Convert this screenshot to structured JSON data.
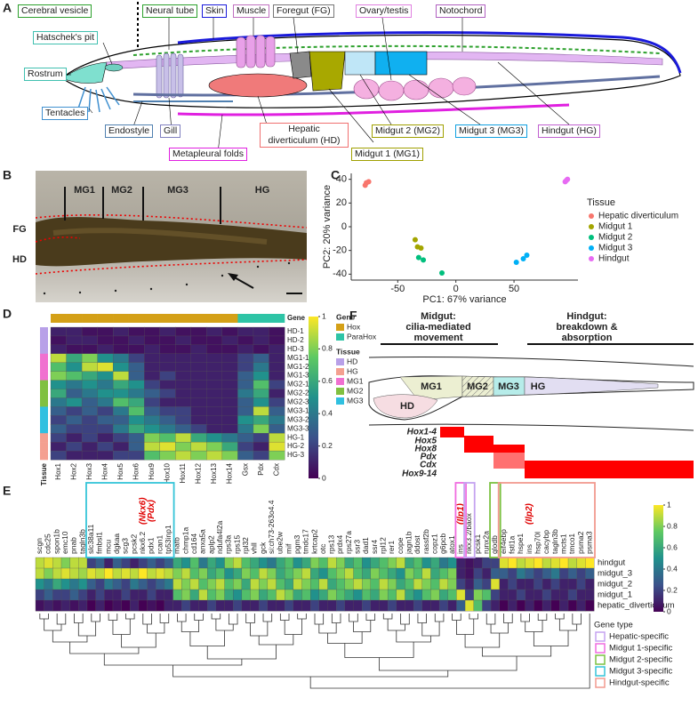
{
  "panel_labels": [
    "A",
    "B",
    "C",
    "D",
    "E",
    "F"
  ],
  "figure_a": {
    "labels": [
      "Cerebral vesicle",
      "Neural tube",
      "Skin",
      "Muscle",
      "Foregut (FG)",
      "Ovary/testis",
      "Notochord",
      "Hatschek's pit",
      "Rostrum",
      "Tentacles",
      "Endostyle",
      "Gill",
      "Hepatic diverticulum (HD)",
      "Metapleural folds",
      "Midgut 1 (MG1)",
      "Midgut 2 (MG2)",
      "Midgut 3 (MG3)",
      "Hindgut (HG)"
    ]
  },
  "figure_b": {
    "labels": [
      "MG1",
      "MG2",
      "MG3",
      "HG",
      "FG",
      "HD"
    ]
  },
  "chart_data": [
    {
      "type": "scatter",
      "xlabel": "PC1: 67% variance",
      "ylabel": "PC2: 20% variance",
      "legend_title": "Tissue",
      "xlim": [
        -90,
        105
      ],
      "ylim": [
        -45,
        45
      ],
      "xticks": [
        -50,
        0,
        50
      ],
      "yticks": [
        -40,
        -20,
        0,
        20,
        40
      ],
      "series": [
        {
          "name": "Hepatic diverticulum",
          "color": "#f8766d",
          "x": [
            -78,
            -75,
            -77
          ],
          "y": [
            35,
            38,
            37
          ]
        },
        {
          "name": "Midgut 1",
          "color": "#a3a500",
          "x": [
            -35,
            -33,
            -30
          ],
          "y": [
            -11,
            -17,
            -18
          ]
        },
        {
          "name": "Midgut 2",
          "color": "#00bf7d",
          "x": [
            -32,
            -28,
            -12
          ],
          "y": [
            -26,
            -28,
            -39
          ]
        },
        {
          "name": "Midgut 3",
          "color": "#00b0f6",
          "x": [
            52,
            58,
            61
          ],
          "y": [
            -30,
            -27,
            -24
          ]
        },
        {
          "name": "Hindgut",
          "color": "#e76bf3",
          "x": [
            94,
            96,
            95
          ],
          "y": [
            38,
            40,
            39
          ]
        }
      ]
    },
    {
      "type": "heatmap",
      "colormap": "viridis",
      "clim": [
        0,
        1
      ],
      "cticks": [
        0,
        0.2,
        0.4,
        0.6,
        0.8,
        1
      ],
      "x": [
        "Hox1",
        "Hox2",
        "Hox3",
        "Hox4",
        "Hox5",
        "Hox6",
        "Hox9",
        "Hox10",
        "Hox11",
        "Hox12",
        "Hox13",
        "Hox14",
        "Gsx",
        "Pdx",
        "Cdx"
      ],
      "y": [
        "HD-1",
        "HD-2",
        "HD-3",
        "MG1-1",
        "MG1-2",
        "MG1-3",
        "MG2-1",
        "MG2-2",
        "MG2-3",
        "MG3-1",
        "MG3-2",
        "MG3-3",
        "HG-1",
        "HG-2",
        "HG-3"
      ],
      "col_title": "Gene",
      "row_title": "Tissue",
      "col_group": [
        "Hox",
        "Hox",
        "Hox",
        "Hox",
        "Hox",
        "Hox",
        "Hox",
        "Hox",
        "Hox",
        "Hox",
        "Hox",
        "Hox",
        "ParaHox",
        "ParaHox",
        "ParaHox"
      ],
      "row_group": [
        "HD",
        "HD",
        "HD",
        "MG1",
        "MG1",
        "MG1",
        "MG2",
        "MG2",
        "MG2",
        "MG3",
        "MG3",
        "MG3",
        "HG",
        "HG",
        "HG"
      ],
      "gene_legend": [
        {
          "name": "Hox",
          "color": "#d4a017"
        },
        {
          "name": "ParaHox",
          "color": "#2ec4a6"
        }
      ],
      "tissue_legend": [
        {
          "name": "HD",
          "color": "#b8a0e8"
        },
        {
          "name": "HG",
          "color": "#f4a090"
        },
        {
          "name": "MG1",
          "color": "#f070d0"
        },
        {
          "name": "MG2",
          "color": "#80c040"
        },
        {
          "name": "MG3",
          "color": "#30c0e0"
        }
      ],
      "values": [
        [
          0.1,
          0.1,
          0.05,
          0.05,
          0.1,
          0.05,
          0.05,
          0.1,
          0.05,
          0.05,
          0.1,
          0.05,
          0.1,
          0.1,
          0.05
        ],
        [
          0.05,
          0.1,
          0.1,
          0.05,
          0.05,
          0.1,
          0.05,
          0.05,
          0.1,
          0.05,
          0.05,
          0.1,
          0.05,
          0.1,
          0.05
        ],
        [
          0.1,
          0.05,
          0.05,
          0.1,
          0.05,
          0.05,
          0.1,
          0.05,
          0.05,
          0.1,
          0.05,
          0.05,
          0.1,
          0.05,
          0.1
        ],
        [
          0.9,
          0.6,
          0.8,
          0.5,
          0.4,
          0.2,
          0.1,
          0.1,
          0.1,
          0.1,
          0.1,
          0.1,
          0.2,
          0.3,
          0.1
        ],
        [
          0.7,
          0.5,
          0.9,
          0.95,
          0.5,
          0.3,
          0.1,
          0.1,
          0.1,
          0.1,
          0.1,
          0.1,
          0.2,
          0.4,
          0.1
        ],
        [
          0.8,
          0.7,
          0.6,
          0.5,
          0.9,
          0.3,
          0.1,
          0.2,
          0.1,
          0.1,
          0.1,
          0.1,
          0.3,
          0.5,
          0.1
        ],
        [
          0.5,
          0.4,
          0.5,
          0.4,
          0.6,
          0.5,
          0.2,
          0.1,
          0.1,
          0.1,
          0.1,
          0.1,
          0.3,
          0.7,
          0.2
        ],
        [
          0.6,
          0.3,
          0.4,
          0.5,
          0.5,
          0.4,
          0.3,
          0.2,
          0.1,
          0.1,
          0.1,
          0.1,
          0.4,
          0.6,
          0.1
        ],
        [
          0.4,
          0.5,
          0.3,
          0.4,
          0.7,
          0.6,
          0.2,
          0.1,
          0.1,
          0.1,
          0.1,
          0.1,
          0.3,
          0.5,
          0.2
        ],
        [
          0.3,
          0.2,
          0.3,
          0.2,
          0.4,
          0.7,
          0.3,
          0.2,
          0.2,
          0.1,
          0.1,
          0.1,
          0.3,
          0.9,
          0.3
        ],
        [
          0.2,
          0.3,
          0.2,
          0.3,
          0.3,
          0.5,
          0.4,
          0.3,
          0.2,
          0.1,
          0.1,
          0.1,
          0.5,
          0.6,
          0.4
        ],
        [
          0.3,
          0.2,
          0.2,
          0.2,
          0.4,
          0.6,
          0.5,
          0.4,
          0.3,
          0.2,
          0.1,
          0.1,
          0.4,
          0.8,
          0.3
        ],
        [
          0.2,
          0.1,
          0.2,
          0.1,
          0.2,
          0.3,
          0.8,
          0.7,
          0.9,
          0.6,
          0.5,
          0.4,
          0.3,
          0.2,
          0.9
        ],
        [
          0.1,
          0.2,
          0.1,
          0.2,
          0.1,
          0.3,
          0.9,
          0.95,
          0.8,
          0.9,
          0.8,
          0.6,
          0.2,
          0.1,
          0.95
        ],
        [
          0.2,
          0.1,
          0.1,
          0.1,
          0.2,
          0.2,
          0.7,
          0.8,
          0.9,
          0.8,
          0.9,
          0.8,
          0.3,
          0.2,
          0.8
        ]
      ]
    },
    {
      "type": "heatmap",
      "colormap": "viridis",
      "clim": [
        0,
        1
      ],
      "cticks": [
        0,
        0.2,
        0.4,
        0.6,
        0.8,
        1
      ],
      "x": [
        "scgn",
        "cdc25",
        "spon1b",
        "emc10",
        "pnab",
        "tagln3b",
        "slc38a11",
        "fmbsl1",
        "mcu",
        "dgkaa",
        "scg3",
        "pcsk2",
        "nkx6.2",
        "pdx1",
        "rcan1",
        "tp53inp1",
        "mafb",
        "chmp1a",
        "cd164",
        "anxa5a",
        "aplp2",
        "ndufa4l2a",
        "rps3a",
        "rps15",
        "rpl32",
        "vhll",
        "gck",
        "si:ch73-263o4.4",
        "ube2w",
        "mif",
        "pgm3",
        "tmdc17",
        "krtcap2",
        "otc",
        "rps13",
        "prdx4",
        "rps27a",
        "ssr3",
        "dad1",
        "ssr4",
        "rpl12",
        "rer1",
        "cope",
        "jagn1b",
        "ddost",
        "rassf2b",
        "copz1",
        "g6pcb",
        "atox1",
        "ins",
        "nkx3.2/baox",
        "pcsk1",
        "runx2a",
        "glodb",
        "eif4ebp",
        "fstl1a",
        "hspe1",
        "ins",
        "hsp70l",
        "cacybp",
        "tagln3b",
        "mcts1",
        "tmco1",
        "psma2",
        "psma3"
      ],
      "x_notes": [
        null,
        null,
        null,
        null,
        null,
        null,
        null,
        null,
        null,
        null,
        null,
        null,
        "(Nkx6)",
        "(Pdx)",
        null,
        null,
        null,
        null,
        null,
        null,
        null,
        null,
        null,
        null,
        null,
        null,
        null,
        null,
        null,
        null,
        null,
        null,
        null,
        null,
        null,
        null,
        null,
        null,
        null,
        null,
        null,
        null,
        null,
        null,
        null,
        null,
        null,
        null,
        null,
        "(Ilp1)",
        null,
        null,
        null,
        null,
        null,
        null,
        null,
        "(Ilp2)",
        null,
        null,
        null,
        null,
        null,
        null,
        null
      ],
      "y": [
        "hindgut",
        "midgut_3",
        "midgut_2",
        "midgut_1",
        "hepatic_diverticulum"
      ],
      "legend_title": "Gene type",
      "legend": [
        {
          "name": "Hepatic-specific",
          "color": "#c5a3f0"
        },
        {
          "name": "Midgut 1-specific",
          "color": "#f06ce0"
        },
        {
          "name": "Midgut 2-specific",
          "color": "#7cc242"
        },
        {
          "name": "Midgut 3-specific",
          "color": "#35c4d8"
        },
        {
          "name": "Hindgut-specific",
          "color": "#f29a8f"
        }
      ],
      "gene_type": [
        null,
        null,
        null,
        null,
        null,
        null,
        "Midgut 3-specific",
        "Midgut 3-specific",
        "Midgut 3-specific",
        "Midgut 3-specific",
        "Midgut 3-specific",
        "Midgut 3-specific",
        "Midgut 3-specific",
        "Midgut 3-specific",
        "Midgut 3-specific",
        "Midgut 3-specific",
        null,
        null,
        null,
        null,
        null,
        null,
        null,
        null,
        null,
        null,
        null,
        null,
        null,
        null,
        null,
        null,
        null,
        null,
        null,
        null,
        null,
        null,
        null,
        null,
        null,
        null,
        null,
        null,
        null,
        null,
        null,
        null,
        null,
        "Midgut 1-specific",
        "Hepatic-specific",
        null,
        null,
        "Midgut 2-specific",
        "Hindgut-specific",
        "Hindgut-specific",
        "Hindgut-specific",
        "Hindgut-specific",
        "Hindgut-specific",
        "Hindgut-specific",
        "Hindgut-specific",
        "Hindgut-specific",
        "Hindgut-specific",
        "Hindgut-specific",
        "Hindgut-specific"
      ],
      "values": [
        [
          0.9,
          0.95,
          0.9,
          0.8,
          0.9,
          0.9,
          0.2,
          0.3,
          0.1,
          0.3,
          0.2,
          0.1,
          0.2,
          0.3,
          0.2,
          0.3,
          0.6,
          0.5,
          0.7,
          0.4,
          0.6,
          0.5,
          0.8,
          0.9,
          0.7,
          0.6,
          0.5,
          0.4,
          0.6,
          0.7,
          0.5,
          0.6,
          0.8,
          0.7,
          0.9,
          0.8,
          0.6,
          0.7,
          0.5,
          0.6,
          0.7,
          0.8,
          0.9,
          0.6,
          0.7,
          0.5,
          0.6,
          0.4,
          0.5,
          0.1,
          0.05,
          0.1,
          0.2,
          0.2,
          0.95,
          1,
          0.9,
          0.95,
          1,
          0.9,
          0.95,
          1,
          0.9,
          0.95,
          1
        ],
        [
          0.9,
          0.8,
          0.9,
          0.95,
          0.9,
          0.85,
          0.95,
          0.9,
          1,
          0.9,
          0.95,
          0.9,
          1,
          0.9,
          0.95,
          0.9,
          0.8,
          0.9,
          0.7,
          0.8,
          0.6,
          0.7,
          0.5,
          0.6,
          0.8,
          0.7,
          0.9,
          0.8,
          0.6,
          0.7,
          0.8,
          0.9,
          0.6,
          0.5,
          0.7,
          0.8,
          0.9,
          0.7,
          0.6,
          0.8,
          0.7,
          0.6,
          0.5,
          0.8,
          0.7,
          0.9,
          0.6,
          0.7,
          0.8,
          0.1,
          0.05,
          0.2,
          0.1,
          0.3,
          0.3,
          0.2,
          0.4,
          0.3,
          0.2,
          0.3,
          0.4,
          0.2,
          0.3,
          0.2,
          0.3
        ],
        [
          0.5,
          0.4,
          0.6,
          0.5,
          0.4,
          0.5,
          0.3,
          0.2,
          0.4,
          0.3,
          0.2,
          0.4,
          0.3,
          0.2,
          0.3,
          0.4,
          0.9,
          0.8,
          0.9,
          0.7,
          0.8,
          0.9,
          0.7,
          0.8,
          0.6,
          0.9,
          0.8,
          0.9,
          0.7,
          0.6,
          0.9,
          0.8,
          0.7,
          0.9,
          0.6,
          0.7,
          0.8,
          0.9,
          0.8,
          0.7,
          0.9,
          0.8,
          0.6,
          0.7,
          0.9,
          0.8,
          0.7,
          0.9,
          0.8,
          0.2,
          0.1,
          0.3,
          0.2,
          0.95,
          0.1,
          0.2,
          0.1,
          0.1,
          0.2,
          0.1,
          0.2,
          0.1,
          0.1,
          0.2,
          0.1
        ],
        [
          0.2,
          0.3,
          0.2,
          0.2,
          0.3,
          0.2,
          0.1,
          0.2,
          0.1,
          0.1,
          0.2,
          0.1,
          0.1,
          0.2,
          0.1,
          0.1,
          0.7,
          0.8,
          0.6,
          0.9,
          0.7,
          0.8,
          0.6,
          0.5,
          0.7,
          0.8,
          0.6,
          0.7,
          0.9,
          0.8,
          0.6,
          0.7,
          0.5,
          0.6,
          0.8,
          0.7,
          0.6,
          0.5,
          0.7,
          0.6,
          0.8,
          0.7,
          0.9,
          0.6,
          0.5,
          0.7,
          0.8,
          0.6,
          0.7,
          0.95,
          0.2,
          0.8,
          0.7,
          0.2,
          0.1,
          0.1,
          0.2,
          0.1,
          0.1,
          0.2,
          0.1,
          0.1,
          0.2,
          0.1,
          0.1
        ],
        [
          0.05,
          0.1,
          0.05,
          0.1,
          0.05,
          0.1,
          0,
          0.1,
          0,
          0.05,
          0,
          0.1,
          0,
          0.05,
          0,
          0.1,
          0.1,
          0.2,
          0.1,
          0.1,
          0.2,
          0.1,
          0.1,
          0.2,
          0.1,
          0.1,
          0.2,
          0.1,
          0.1,
          0.2,
          0.1,
          0.1,
          0.2,
          0.1,
          0.1,
          0.2,
          0.1,
          0.1,
          0.2,
          0.1,
          0.1,
          0.2,
          0.1,
          0.1,
          0.2,
          0.1,
          0.1,
          0.2,
          0.1,
          0.3,
          0.95,
          0.7,
          0.2,
          0.1,
          0,
          0.1,
          0,
          0.1,
          0,
          0.1,
          0,
          0.1,
          0,
          0.1,
          0
        ]
      ]
    }
  ],
  "figure_f": {
    "midgut_title": "Midgut:",
    "midgut_text": "cilia-mediated movement",
    "hindgut_title": "Hindgut:",
    "hindgut_text": "breakdown & absorption",
    "regions": [
      "MG1",
      "MG2",
      "MG3",
      "HG",
      "HD"
    ],
    "genes": [
      "Hox1-4",
      "Hox5",
      "Hox8",
      "Pdx",
      "Cdx",
      "Hox9-14"
    ]
  }
}
